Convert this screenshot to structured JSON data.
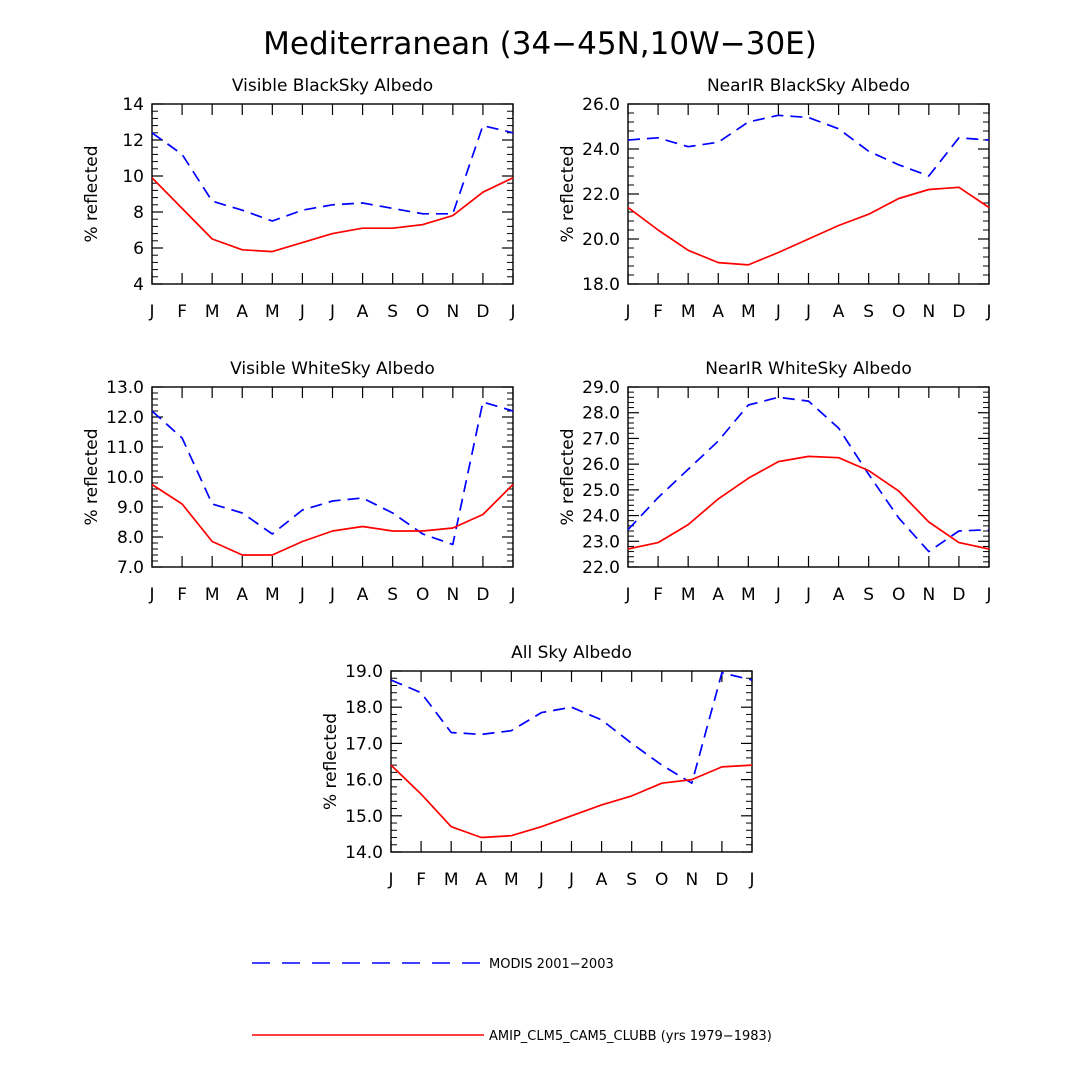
{
  "figure": {
    "title": "Mediterranean (34−45N,10W−30E)"
  },
  "legend": {
    "modis_label": "MODIS 2001−2003",
    "model_label": "AMIP_CLM5_CAM5_CLUBB (yrs 1979−1983)",
    "modis_color": "#0000ff",
    "model_color": "#ff0000"
  },
  "chart_data": [
    {
      "type": "line",
      "title": "Visible BlackSky Albedo",
      "xlabel": "",
      "ylabel": "% reflected",
      "categories": [
        "J",
        "F",
        "M",
        "A",
        "M",
        "J",
        "J",
        "A",
        "S",
        "O",
        "N",
        "D",
        "J"
      ],
      "ylim": [
        4,
        14
      ],
      "yticks": [
        4,
        6,
        8,
        10,
        12,
        14
      ],
      "ytick_labels": [
        "4",
        "6",
        "8",
        "10",
        "12",
        "14"
      ],
      "series": [
        {
          "name": "MODIS 2001−2003",
          "style": "dashed",
          "color": "#0000ff",
          "values": [
            12.4,
            11.2,
            8.6,
            8.1,
            7.5,
            8.1,
            8.4,
            8.5,
            8.2,
            7.9,
            7.9,
            12.8,
            12.4
          ]
        },
        {
          "name": "AMIP_CLM5_CAM5_CLUBB (yrs 1979−1983)",
          "style": "solid",
          "color": "#ff0000",
          "values": [
            9.9,
            8.2,
            6.5,
            5.9,
            5.8,
            6.3,
            6.8,
            7.1,
            7.1,
            7.3,
            7.8,
            9.1,
            9.9
          ]
        }
      ]
    },
    {
      "type": "line",
      "title": "NearIR BlackSky Albedo",
      "xlabel": "",
      "ylabel": "% reflected",
      "categories": [
        "J",
        "F",
        "M",
        "A",
        "M",
        "J",
        "J",
        "A",
        "S",
        "O",
        "N",
        "D",
        "J"
      ],
      "ylim": [
        18,
        26
      ],
      "yticks": [
        18,
        20,
        22,
        24,
        26
      ],
      "ytick_labels": [
        "18.0",
        "20.0",
        "22.0",
        "24.0",
        "26.0"
      ],
      "series": [
        {
          "name": "MODIS 2001−2003",
          "style": "dashed",
          "color": "#0000ff",
          "values": [
            24.4,
            24.5,
            24.1,
            24.3,
            25.2,
            25.5,
            25.4,
            24.9,
            23.9,
            23.3,
            22.8,
            24.5,
            24.4
          ]
        },
        {
          "name": "AMIP_CLM5_CAM5_CLUBB (yrs 1979−1983)",
          "style": "solid",
          "color": "#ff0000",
          "values": [
            21.4,
            20.4,
            19.5,
            18.95,
            18.85,
            19.4,
            20.0,
            20.6,
            21.1,
            21.8,
            22.2,
            22.3,
            21.4
          ]
        }
      ]
    },
    {
      "type": "line",
      "title": "Visible WhiteSky Albedo",
      "xlabel": "",
      "ylabel": "% reflected",
      "categories": [
        "J",
        "F",
        "M",
        "A",
        "M",
        "J",
        "J",
        "A",
        "S",
        "O",
        "N",
        "D",
        "J"
      ],
      "ylim": [
        7,
        13
      ],
      "yticks": [
        7,
        8,
        9,
        10,
        11,
        12,
        13
      ],
      "ytick_labels": [
        "7.0",
        "8.0",
        "9.0",
        "10.0",
        "11.0",
        "12.0",
        "13.0"
      ],
      "series": [
        {
          "name": "MODIS 2001−2003",
          "style": "dashed",
          "color": "#0000ff",
          "values": [
            12.2,
            11.3,
            9.1,
            8.8,
            8.1,
            8.9,
            9.2,
            9.3,
            8.8,
            8.1,
            7.75,
            12.5,
            12.2
          ]
        },
        {
          "name": "AMIP_CLM5_CAM5_CLUBB (yrs 1979−1983)",
          "style": "solid",
          "color": "#ff0000",
          "values": [
            9.75,
            9.1,
            7.85,
            7.4,
            7.4,
            7.85,
            8.2,
            8.35,
            8.2,
            8.2,
            8.3,
            8.75,
            9.75
          ]
        }
      ]
    },
    {
      "type": "line",
      "title": "NearIR WhiteSky Albedo",
      "xlabel": "",
      "ylabel": "% reflected",
      "categories": [
        "J",
        "F",
        "M",
        "A",
        "M",
        "J",
        "J",
        "A",
        "S",
        "O",
        "N",
        "D",
        "J"
      ],
      "ylim": [
        22,
        29
      ],
      "yticks": [
        22,
        23,
        24,
        25,
        26,
        27,
        28,
        29
      ],
      "ytick_labels": [
        "22.0",
        "23.0",
        "24.0",
        "25.0",
        "26.0",
        "27.0",
        "28.0",
        "29.0"
      ],
      "series": [
        {
          "name": "MODIS 2001−2003",
          "style": "dashed",
          "color": "#0000ff",
          "values": [
            23.45,
            24.7,
            25.8,
            26.9,
            28.3,
            28.6,
            28.45,
            27.4,
            25.6,
            23.9,
            22.6,
            23.4,
            23.45
          ]
        },
        {
          "name": "AMIP_CLM5_CAM5_CLUBB (yrs 1979−1983)",
          "style": "solid",
          "color": "#ff0000",
          "values": [
            22.7,
            22.95,
            23.65,
            24.65,
            25.45,
            26.1,
            26.3,
            26.25,
            25.75,
            24.95,
            23.75,
            22.95,
            22.7
          ]
        }
      ]
    },
    {
      "type": "line",
      "title": "All Sky Albedo",
      "xlabel": "",
      "ylabel": "% reflected",
      "categories": [
        "J",
        "F",
        "M",
        "A",
        "M",
        "J",
        "J",
        "A",
        "S",
        "O",
        "N",
        "D",
        "J"
      ],
      "ylim": [
        14,
        19
      ],
      "yticks": [
        14,
        15,
        16,
        17,
        18,
        19
      ],
      "ytick_labels": [
        "14.0",
        "15.0",
        "16.0",
        "17.0",
        "18.0",
        "19.0"
      ],
      "series": [
        {
          "name": "MODIS 2001−2003",
          "style": "dashed",
          "color": "#0000ff",
          "values": [
            18.75,
            18.4,
            17.3,
            17.25,
            17.35,
            17.85,
            18.0,
            17.65,
            17.0,
            16.4,
            15.9,
            18.95,
            18.75
          ]
        },
        {
          "name": "AMIP_CLM5_CAM5_CLUBB (yrs 1979−1983)",
          "style": "solid",
          "color": "#ff0000",
          "values": [
            16.4,
            15.6,
            14.7,
            14.4,
            14.45,
            14.7,
            15.0,
            15.3,
            15.55,
            15.9,
            16.0,
            16.35,
            16.4
          ]
        }
      ]
    }
  ]
}
